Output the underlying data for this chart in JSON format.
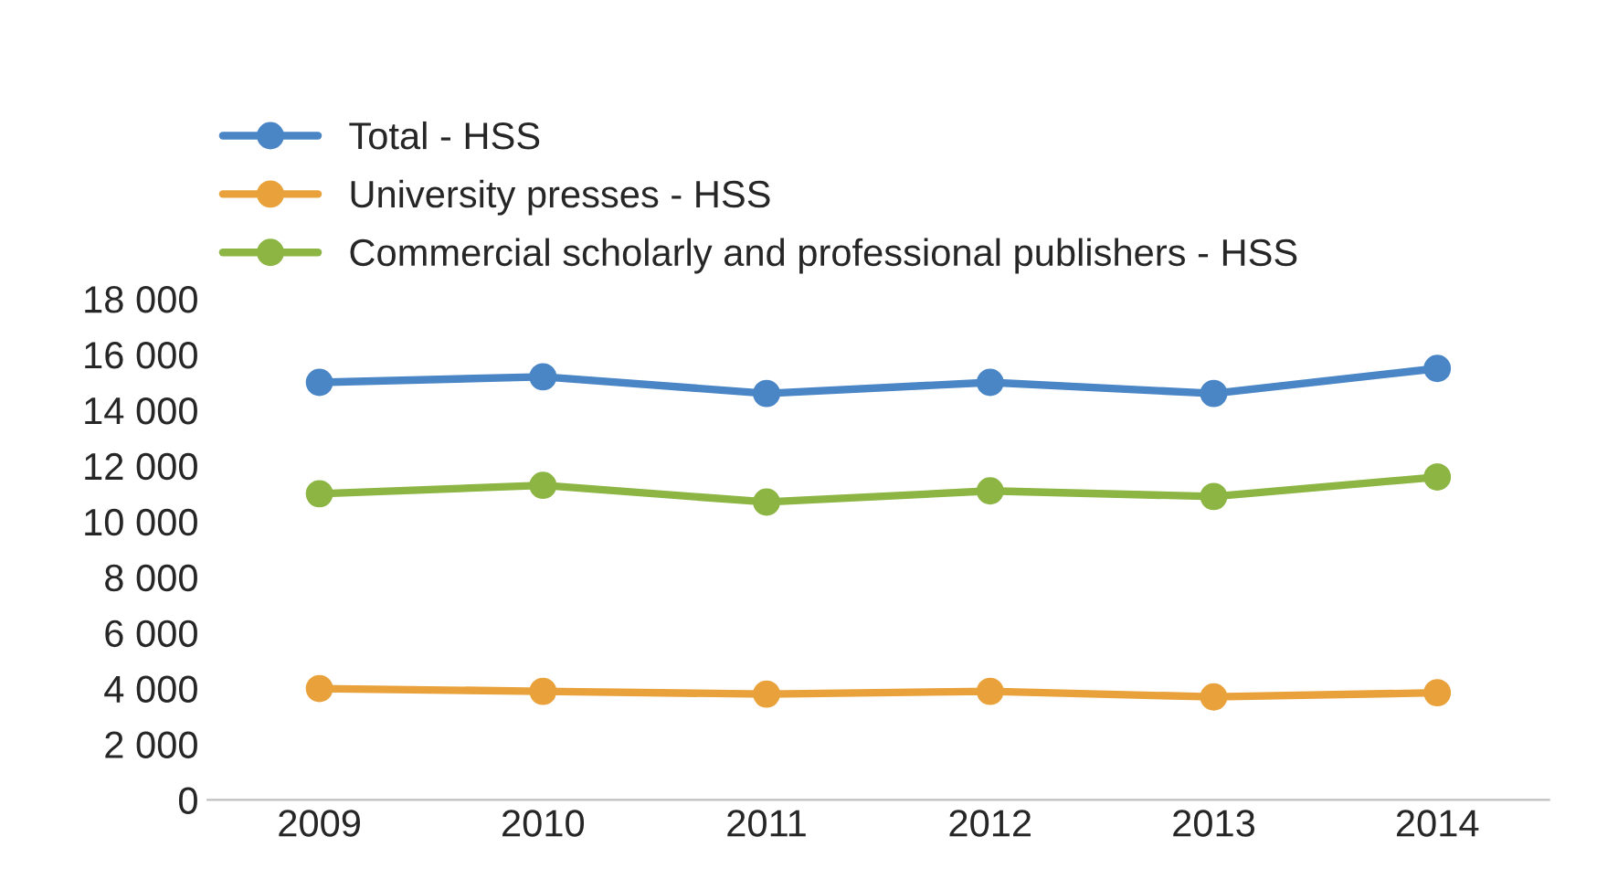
{
  "chart_data": {
    "type": "line",
    "categories": [
      "2009",
      "2010",
      "2011",
      "2012",
      "2013",
      "2014"
    ],
    "series": [
      {
        "name": "Total - HSS",
        "color": "#4a86c6",
        "values": [
          15000,
          15200,
          14600,
          15000,
          14600,
          15500
        ]
      },
      {
        "name": "University presses - HSS",
        "color": "#e9a23b",
        "values": [
          4000,
          3900,
          3800,
          3900,
          3700,
          3850
        ]
      },
      {
        "name": "Commercial scholarly and professional publishers - HSS",
        "color": "#8cb543",
        "values": [
          11000,
          11300,
          10700,
          11100,
          10900,
          11600
        ]
      }
    ],
    "ylim": [
      0,
      18000
    ],
    "yticks": [
      0,
      {
        "value": 2000,
        "label": "2 000"
      },
      {
        "value": 4000,
        "label": "4 000"
      },
      {
        "value": 6000,
        "label": "6 000"
      },
      {
        "value": 8000,
        "label": "8 000"
      },
      {
        "value": 10000,
        "label": "10 000"
      },
      {
        "value": 12000,
        "label": "12 000"
      },
      {
        "value": 14000,
        "label": "14 000"
      },
      {
        "value": 16000,
        "label": "16 000"
      },
      {
        "value": 18000,
        "label": "18 000"
      }
    ],
    "grid": false,
    "legend": "top left",
    "marker": "circle",
    "line_style": "solid"
  }
}
